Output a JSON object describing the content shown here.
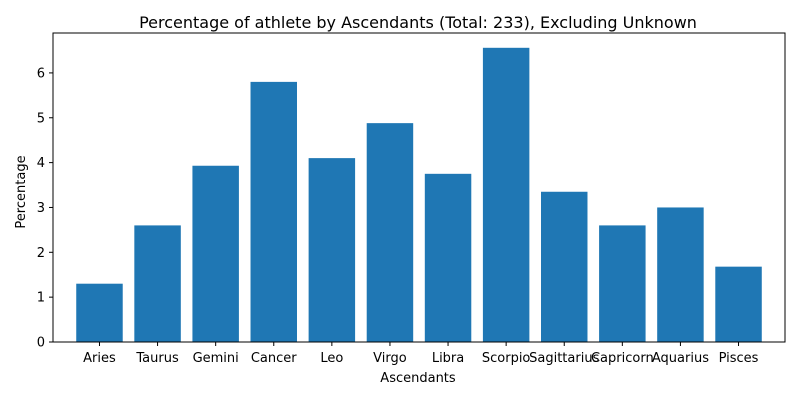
{
  "chart_data": {
    "type": "bar",
    "title": "Percentage of athlete by Ascendants (Total: 233), Excluding Unknown",
    "xlabel": "Ascendants",
    "ylabel": "Percentage",
    "categories": [
      "Aries",
      "Taurus",
      "Gemini",
      "Cancer",
      "Leo",
      "Virgo",
      "Libra",
      "Scorpio",
      "Sagittarius",
      "Capricorn",
      "Aquarius",
      "Pisces"
    ],
    "values": [
      1.3,
      2.6,
      3.93,
      5.8,
      4.1,
      4.88,
      3.75,
      6.56,
      3.35,
      2.6,
      3.0,
      1.68
    ],
    "ylim": [
      0,
      6.89
    ],
    "yticks": [
      0,
      1,
      2,
      3,
      4,
      5,
      6
    ],
    "grid": false,
    "legend": "none",
    "colors": {
      "bar": "#1f77b4",
      "axis": "#000000",
      "background": "#ffffff"
    }
  }
}
